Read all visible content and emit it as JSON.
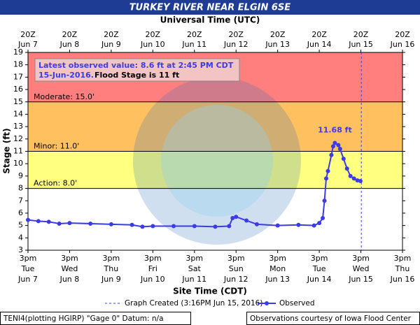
{
  "chart_data": {
    "type": "line",
    "title": "TURKEY RIVER NEAR ELGIN 6SE",
    "x2_label": "Universal Time (UTC)",
    "x_label": "Site Time (CDT)",
    "y_label": "Stage (ft)",
    "ylim": [
      3,
      19
    ],
    "yticks": [
      3,
      4,
      5,
      6,
      7,
      8,
      9,
      10,
      11,
      12,
      13,
      14,
      15,
      16,
      17,
      18,
      19
    ],
    "xlim": [
      "Jun 7 15:00",
      "Jun 16 15:00"
    ],
    "xticks": [
      {
        "value": "Jun 7 15:00",
        "label": [
          "3pm",
          "Tue",
          "Jun 7"
        ]
      },
      {
        "value": "Jun 8 15:00",
        "label": [
          "3pm",
          "Wed",
          "Jun 8"
        ]
      },
      {
        "value": "Jun 9 15:00",
        "label": [
          "3pm",
          "Thu",
          "Jun 9"
        ]
      },
      {
        "value": "Jun 10 15:00",
        "label": [
          "3pm",
          "Fri",
          "Jun 10"
        ]
      },
      {
        "value": "Jun 11 15:00",
        "label": [
          "3pm",
          "Sat",
          "Jun 11"
        ]
      },
      {
        "value": "Jun 12 15:00",
        "label": [
          "3pm",
          "Sun",
          "Jun 12"
        ]
      },
      {
        "value": "Jun 13 15:00",
        "label": [
          "3pm",
          "Mon",
          "Jun 13"
        ]
      },
      {
        "value": "Jun 14 15:00",
        "label": [
          "3pm",
          "Tue",
          "Jun 14"
        ]
      },
      {
        "value": "Jun 15 15:00",
        "label": [
          "3pm",
          "Wed",
          "Jun 15"
        ]
      },
      {
        "value": "Jun 16 15:00",
        "label": [
          "3pm",
          "Thu",
          "Jun 16"
        ]
      }
    ],
    "x2ticks": [
      {
        "value": "Jun 7 15:00",
        "label": [
          "20Z",
          "Jun 7"
        ]
      },
      {
        "value": "Jun 8 15:00",
        "label": [
          "20Z",
          "Jun 8"
        ]
      },
      {
        "value": "Jun 9 15:00",
        "label": [
          "20Z",
          "Jun 9"
        ]
      },
      {
        "value": "Jun 10 15:00",
        "label": [
          "20Z",
          "Jun 10"
        ]
      },
      {
        "value": "Jun 11 15:00",
        "label": [
          "20Z",
          "Jun 11"
        ]
      },
      {
        "value": "Jun 12 15:00",
        "label": [
          "20Z",
          "Jun 12"
        ]
      },
      {
        "value": "Jun 13 15:00",
        "label": [
          "20Z",
          "Jun 13"
        ]
      },
      {
        "value": "Jun 14 15:00",
        "label": [
          "20Z",
          "Jun 14"
        ]
      },
      {
        "value": "Jun 15 15:00",
        "label": [
          "20Z",
          "Jun 15"
        ]
      },
      {
        "value": "Jun 16 15:00",
        "label": [
          "20Z",
          "Jun 16"
        ]
      }
    ],
    "flood_stages": [
      {
        "label": "Action: 8.0'",
        "value": 8,
        "color": "#ffff80"
      },
      {
        "label": "Minor: 11.0'",
        "value": 11,
        "color": "#ffc060"
      },
      {
        "label": "Moderate: 15.0'",
        "value": 15,
        "color": "#ff7f7f"
      }
    ],
    "series": [
      {
        "name": "Observed",
        "color": "#3c3ce6",
        "x": [
          "Jun 7 15:00",
          "Jun 7 21:00",
          "Jun 8 3:00",
          "Jun 8 9:00",
          "Jun 8 15:00",
          "Jun 9 3:00",
          "Jun 9 15:00",
          "Jun 10 3:00",
          "Jun 10 9:00",
          "Jun 10 15:00",
          "Jun 11 3:00",
          "Jun 11 15:00",
          "Jun 12 3:00",
          "Jun 12 11:00",
          "Jun 12 13:00",
          "Jun 12 15:00",
          "Jun 12 21:00",
          "Jun 13 3:00",
          "Jun 13 15:00",
          "Jun 14 3:00",
          "Jun 14 12:00",
          "Jun 14 15:00",
          "Jun 14 17:00",
          "Jun 14 18:00",
          "Jun 14 19:00",
          "Jun 14 20:00",
          "Jun 14 22:00",
          "Jun 14 23:00",
          "Jun 15 0:00",
          "Jun 15 2:00",
          "Jun 15 3:00",
          "Jun 15 5:00",
          "Jun 15 7:00",
          "Jun 15 9:00",
          "Jun 15 11:00",
          "Jun 15 13:00",
          "Jun 15 14:45"
        ],
        "values": [
          5.45,
          5.35,
          5.3,
          5.15,
          5.2,
          5.15,
          5.1,
          5.05,
          4.9,
          4.95,
          4.95,
          4.95,
          4.9,
          4.95,
          5.6,
          5.7,
          5.4,
          5.1,
          5.0,
          5.05,
          5.0,
          5.2,
          5.6,
          7.0,
          8.8,
          9.4,
          10.7,
          11.4,
          11.68,
          11.5,
          11.2,
          10.4,
          9.6,
          9.0,
          8.8,
          8.65,
          8.6
        ]
      }
    ],
    "peak_label": {
      "text": "11.68 ft",
      "x": "Jun 15 0:00",
      "y": 11.68
    },
    "graph_created": {
      "name": "Graph Created (3:16PM Jun 15, 2016)",
      "x": "Jun 15 15:16"
    },
    "info": {
      "line1": "Latest observed value: 8.6 ft at 2:45 PM CDT",
      "line2": "15-Jun-2016.",
      "flood_note": "Flood Stage is 11 ft"
    },
    "footer_left": "TENI4(plotting HGIRP) \"Gage 0\" Datum: n/a",
    "footer_right": "Observations courtesy of Iowa Flood Center"
  }
}
